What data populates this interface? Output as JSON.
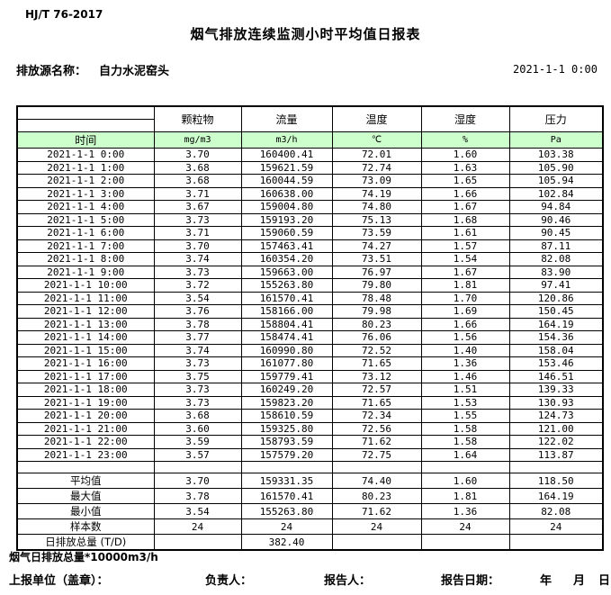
{
  "header": {
    "standard": "HJ/T 76-2017",
    "title": "烟气排放连续监测小时平均值日报表",
    "source_label": "排放源名称：",
    "source_name": "自力水泥窑头",
    "datetime": "2021-1-1 0:00"
  },
  "table": {
    "time_label": "时间",
    "columns": [
      "颗粒物",
      "流量",
      "温度",
      "湿度",
      "压力"
    ],
    "units": [
      "mg/m3",
      "m3/h",
      "℃",
      "%",
      "Pa"
    ],
    "rows": [
      {
        "time": "2021-1-1 0:00",
        "values": [
          "3.70",
          "160400.41",
          "72.01",
          "1.60",
          "103.38"
        ]
      },
      {
        "time": "2021-1-1 1:00",
        "values": [
          "3.68",
          "159621.59",
          "72.74",
          "1.63",
          "105.90"
        ]
      },
      {
        "time": "2021-1-1 2:00",
        "values": [
          "3.68",
          "160044.59",
          "73.09",
          "1.65",
          "105.94"
        ]
      },
      {
        "time": "2021-1-1 3:00",
        "values": [
          "3.71",
          "160638.00",
          "74.19",
          "1.66",
          "102.84"
        ]
      },
      {
        "time": "2021-1-1 4:00",
        "values": [
          "3.67",
          "159004.80",
          "74.80",
          "1.67",
          "94.84"
        ]
      },
      {
        "time": "2021-1-1 5:00",
        "values": [
          "3.73",
          "159193.20",
          "75.13",
          "1.68",
          "90.46"
        ]
      },
      {
        "time": "2021-1-1 6:00",
        "values": [
          "3.71",
          "159060.59",
          "73.59",
          "1.61",
          "90.45"
        ]
      },
      {
        "time": "2021-1-1 7:00",
        "values": [
          "3.70",
          "157463.41",
          "74.27",
          "1.57",
          "87.11"
        ]
      },
      {
        "time": "2021-1-1 8:00",
        "values": [
          "3.74",
          "160354.20",
          "73.51",
          "1.54",
          "82.08"
        ]
      },
      {
        "time": "2021-1-1 9:00",
        "values": [
          "3.73",
          "159663.00",
          "76.97",
          "1.67",
          "83.90"
        ]
      },
      {
        "time": "2021-1-1 10:00",
        "values": [
          "3.72",
          "155263.80",
          "79.80",
          "1.81",
          "97.41"
        ]
      },
      {
        "time": "2021-1-1 11:00",
        "values": [
          "3.54",
          "161570.41",
          "78.48",
          "1.70",
          "120.86"
        ]
      },
      {
        "time": "2021-1-1 12:00",
        "values": [
          "3.76",
          "158166.00",
          "79.98",
          "1.69",
          "150.45"
        ]
      },
      {
        "time": "2021-1-1 13:00",
        "values": [
          "3.78",
          "158804.41",
          "80.23",
          "1.66",
          "164.19"
        ]
      },
      {
        "time": "2021-1-1 14:00",
        "values": [
          "3.77",
          "158474.41",
          "76.06",
          "1.56",
          "154.36"
        ]
      },
      {
        "time": "2021-1-1 15:00",
        "values": [
          "3.74",
          "160990.80",
          "72.52",
          "1.40",
          "158.04"
        ]
      },
      {
        "time": "2021-1-1 16:00",
        "values": [
          "3.73",
          "161077.80",
          "71.65",
          "1.36",
          "153.46"
        ]
      },
      {
        "time": "2021-1-1 17:00",
        "values": [
          "3.75",
          "159779.41",
          "73.12",
          "1.46",
          "146.51"
        ]
      },
      {
        "time": "2021-1-1 18:00",
        "values": [
          "3.73",
          "160249.20",
          "72.57",
          "1.51",
          "139.33"
        ]
      },
      {
        "time": "2021-1-1 19:00",
        "values": [
          "3.73",
          "159823.20",
          "71.65",
          "1.53",
          "130.93"
        ]
      },
      {
        "time": "2021-1-1 20:00",
        "values": [
          "3.68",
          "158610.59",
          "72.34",
          "1.55",
          "124.73"
        ]
      },
      {
        "time": "2021-1-1 21:00",
        "values": [
          "3.60",
          "159325.80",
          "72.56",
          "1.58",
          "121.00"
        ]
      },
      {
        "time": "2021-1-1 22:00",
        "values": [
          "3.59",
          "158793.59",
          "71.62",
          "1.58",
          "122.02"
        ]
      },
      {
        "time": "2021-1-1 23:00",
        "values": [
          "3.57",
          "157579.20",
          "72.75",
          "1.64",
          "113.87"
        ]
      }
    ],
    "summary": [
      {
        "label": "平均值",
        "values": [
          "3.70",
          "159331.35",
          "74.40",
          "1.60",
          "118.50"
        ]
      },
      {
        "label": "最大值",
        "values": [
          "3.78",
          "161570.41",
          "80.23",
          "1.81",
          "164.19"
        ]
      },
      {
        "label": "最小值",
        "values": [
          "3.54",
          "155263.80",
          "71.62",
          "1.36",
          "82.08"
        ]
      },
      {
        "label": "样本数",
        "values": [
          "24",
          "24",
          "24",
          "24",
          "24"
        ]
      },
      {
        "label": "日排放总量 (T/D)",
        "values": [
          "",
          "382.40",
          "",
          "",
          ""
        ]
      }
    ]
  },
  "footer": {
    "note": "烟气日排放总量*10000m3/h",
    "report_unit_label": "上报单位（盖章）：",
    "responsible_label": "负责人：",
    "reporter_label": "报告人：",
    "report_date_label": "报告日期：",
    "year_label": "年",
    "month_label": "月",
    "day_label": "日"
  },
  "colors": {
    "header_row_green": "#ccffcc",
    "border": "#000000",
    "background": "#ffffff"
  }
}
